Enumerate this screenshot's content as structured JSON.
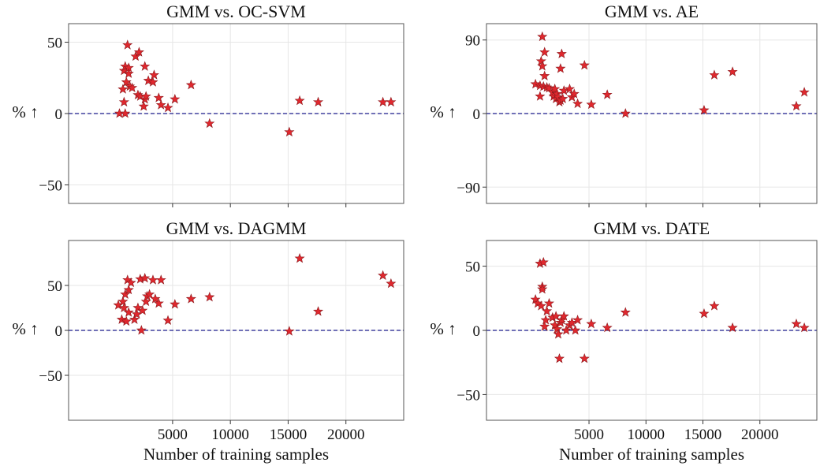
{
  "chart_data": [
    {
      "type": "scatter",
      "title": "GMM vs. OC-SVM",
      "ylabel": "% ↑",
      "xlabel": "",
      "xlim": [
        -4000,
        25000
      ],
      "ylim": [
        -63,
        63
      ],
      "xticks": [
        5000,
        10000,
        15000,
        20000
      ],
      "yticks": [
        -50,
        0,
        50
      ],
      "ytick_labels": [
        "−50",
        "0",
        "50"
      ],
      "xtick_labels": [],
      "reference_line": 0,
      "grid": true,
      "points": [
        [
          400,
          0
        ],
        [
          700,
          17
        ],
        [
          800,
          8
        ],
        [
          800,
          30
        ],
        [
          900,
          0
        ],
        [
          900,
          33
        ],
        [
          1000,
          22
        ],
        [
          1100,
          48
        ],
        [
          1200,
          32
        ],
        [
          1200,
          28
        ],
        [
          1300,
          19
        ],
        [
          1500,
          18
        ],
        [
          1800,
          40
        ],
        [
          2000,
          13
        ],
        [
          2100,
          43
        ],
        [
          2200,
          12
        ],
        [
          2500,
          5
        ],
        [
          2600,
          10
        ],
        [
          2600,
          33
        ],
        [
          2700,
          12
        ],
        [
          2900,
          23
        ],
        [
          3300,
          22
        ],
        [
          3400,
          27
        ],
        [
          3800,
          11
        ],
        [
          4000,
          6
        ],
        [
          4600,
          4
        ],
        [
          5200,
          10
        ],
        [
          6600,
          20
        ],
        [
          8200,
          -7
        ],
        [
          15100,
          -13
        ],
        [
          16000,
          9
        ],
        [
          17600,
          8
        ],
        [
          23200,
          8
        ],
        [
          23900,
          8
        ]
      ]
    },
    {
      "type": "scatter",
      "title": "GMM vs. AE",
      "ylabel": "% ↑",
      "xlabel": "",
      "xlim": [
        -4000,
        25000
      ],
      "ylim": [
        -110,
        110
      ],
      "xticks": [
        5000,
        10000,
        15000,
        20000
      ],
      "yticks": [
        -90,
        0,
        90
      ],
      "ytick_labels": [
        "−90",
        "0",
        "90"
      ],
      "xtick_labels": [],
      "reference_line": 0,
      "grid": true,
      "points": [
        [
          300,
          36
        ],
        [
          700,
          34
        ],
        [
          700,
          21
        ],
        [
          800,
          64
        ],
        [
          900,
          94
        ],
        [
          900,
          58
        ],
        [
          1000,
          33
        ],
        [
          1100,
          46
        ],
        [
          1100,
          75
        ],
        [
          1300,
          32
        ],
        [
          1500,
          31
        ],
        [
          1800,
          26
        ],
        [
          1900,
          21
        ],
        [
          2000,
          30
        ],
        [
          2100,
          18
        ],
        [
          2200,
          24
        ],
        [
          2300,
          20
        ],
        [
          2400,
          14
        ],
        [
          2500,
          16
        ],
        [
          2500,
          55
        ],
        [
          2600,
          73
        ],
        [
          2700,
          18
        ],
        [
          2800,
          28
        ],
        [
          3300,
          30
        ],
        [
          3500,
          20
        ],
        [
          3700,
          24
        ],
        [
          4000,
          12
        ],
        [
          4600,
          59
        ],
        [
          5200,
          11
        ],
        [
          6600,
          23
        ],
        [
          8200,
          0
        ],
        [
          15100,
          4
        ],
        [
          16000,
          47
        ],
        [
          17600,
          51
        ],
        [
          23200,
          9
        ],
        [
          23900,
          26
        ]
      ]
    },
    {
      "type": "scatter",
      "title": "GMM vs. DAGMM",
      "ylabel": "% ↑",
      "xlabel": "Number of training samples",
      "xlim": [
        -4000,
        25000
      ],
      "ylim": [
        -100,
        100
      ],
      "xticks": [
        5000,
        10000,
        15000,
        20000
      ],
      "yticks": [
        -50,
        0,
        50
      ],
      "ytick_labels": [
        "−50",
        "0",
        "50"
      ],
      "xtick_labels": [
        "5000",
        "10000",
        "15000",
        "20000"
      ],
      "reference_line": 0,
      "grid": true,
      "points": [
        [
          300,
          28
        ],
        [
          600,
          12
        ],
        [
          700,
          32
        ],
        [
          800,
          25
        ],
        [
          900,
          40
        ],
        [
          1000,
          10
        ],
        [
          1100,
          56
        ],
        [
          1200,
          20
        ],
        [
          1200,
          45
        ],
        [
          1400,
          53
        ],
        [
          1700,
          12
        ],
        [
          1900,
          18
        ],
        [
          2000,
          25
        ],
        [
          2200,
          57
        ],
        [
          2300,
          0
        ],
        [
          2400,
          22
        ],
        [
          2600,
          58
        ],
        [
          2700,
          32
        ],
        [
          2800,
          38
        ],
        [
          3000,
          40
        ],
        [
          3300,
          56
        ],
        [
          3500,
          35
        ],
        [
          3800,
          30
        ],
        [
          4000,
          56
        ],
        [
          4600,
          11
        ],
        [
          5200,
          29
        ],
        [
          6600,
          35
        ],
        [
          8200,
          37
        ],
        [
          15100,
          -1
        ],
        [
          16000,
          80
        ],
        [
          17600,
          21
        ],
        [
          23200,
          61
        ],
        [
          23900,
          52
        ]
      ]
    },
    {
      "type": "scatter",
      "title": "GMM vs. DATE",
      "ylabel": "% ↑",
      "xlabel": "Number of training samples",
      "xlim": [
        -4000,
        25000
      ],
      "ylim": [
        -70,
        70
      ],
      "xticks": [
        5000,
        10000,
        15000,
        20000
      ],
      "yticks": [
        -50,
        0,
        50
      ],
      "ytick_labels": [
        "−50",
        "0",
        "50"
      ],
      "xtick_labels": [
        "5000",
        "10000",
        "15000",
        "20000"
      ],
      "reference_line": 0,
      "grid": true,
      "points": [
        [
          300,
          24
        ],
        [
          500,
          21
        ],
        [
          700,
          52
        ],
        [
          800,
          19
        ],
        [
          900,
          34
        ],
        [
          900,
          32
        ],
        [
          1000,
          53
        ],
        [
          1100,
          3
        ],
        [
          1200,
          8
        ],
        [
          1300,
          15
        ],
        [
          1500,
          21
        ],
        [
          1800,
          10
        ],
        [
          2000,
          4
        ],
        [
          2100,
          11
        ],
        [
          2200,
          1
        ],
        [
          2300,
          -3
        ],
        [
          2400,
          -22
        ],
        [
          2500,
          6
        ],
        [
          2600,
          8
        ],
        [
          2800,
          11
        ],
        [
          3000,
          0
        ],
        [
          3300,
          4
        ],
        [
          3500,
          6
        ],
        [
          3800,
          0
        ],
        [
          4000,
          8
        ],
        [
          4600,
          -22
        ],
        [
          5200,
          5
        ],
        [
          6600,
          2
        ],
        [
          8200,
          14
        ],
        [
          15100,
          13
        ],
        [
          16000,
          19
        ],
        [
          17600,
          2
        ],
        [
          23200,
          5
        ],
        [
          23900,
          2
        ]
      ]
    }
  ]
}
